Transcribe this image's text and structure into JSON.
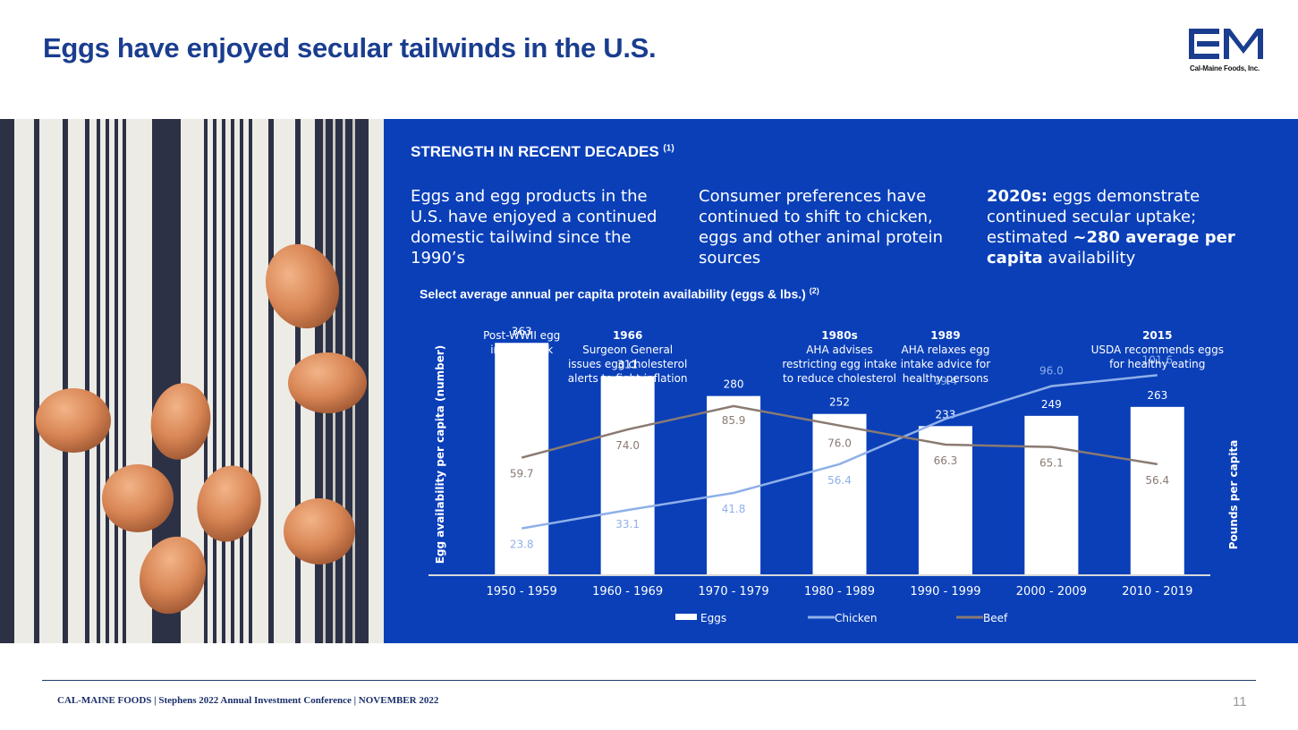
{
  "title": "Eggs have enjoyed secular tailwinds in the U.S.",
  "logo": {
    "mark": "CM",
    "company": "Cal-Maine Foods, Inc."
  },
  "panel": {
    "heading": "STRENGTH IN RECENT DECADES",
    "heading_note": "(1)",
    "col1": "Eggs and egg products in the U.S. have enjoyed a continued domestic tailwind since the 1990’s",
    "col2": "Consumer preferences have continued to shift to chicken, eggs and other animal protein sources",
    "col3_bold1": "2020s:",
    "col3_text1": " eggs demonstrate continued secular uptake; estimated ",
    "col3_bold2": "~280 average per capita",
    "col3_text2": " availability",
    "chart_title": "Select average annual per capita protein availability (eggs & lbs.)",
    "chart_title_note": "(2)"
  },
  "chart_data": {
    "type": "bar",
    "categories": [
      "1950 - 1959",
      "1960 - 1969",
      "1970 - 1979",
      "1980 - 1989",
      "1990 - 1999",
      "2000 - 2009",
      "2010 - 2019"
    ],
    "ylabel": "Egg availability per capita (number)",
    "y2label": "Pounds per capita",
    "ylim": [
      0,
      400
    ],
    "y2lim": [
      0,
      130
    ],
    "series": [
      {
        "name": "Eggs",
        "type": "bar",
        "values": [
          363,
          311,
          280,
          252,
          233,
          249,
          263
        ],
        "color": "#ffffff"
      },
      {
        "name": "Chicken",
        "type": "line",
        "values": [
          23.8,
          33.1,
          41.8,
          56.4,
          79.4,
          96.0,
          101.6
        ],
        "color": "#8fb0e8"
      },
      {
        "name": "Beef",
        "type": "line",
        "values": [
          59.7,
          74.0,
          85.9,
          76.0,
          66.3,
          65.1,
          56.4
        ],
        "color": "#8a7a72"
      }
    ],
    "data_labels": {
      "Eggs": [
        "363",
        "311",
        "280",
        "252",
        "233",
        "249",
        "263"
      ],
      "Chicken": [
        "23.8",
        "33.1",
        "41.8",
        "56.4",
        "79.4",
        "96.0",
        "101.6"
      ],
      "Beef": [
        "59.7",
        "74.0",
        "85.9",
        "76.0",
        "66.3",
        "65.1",
        "56.4"
      ]
    },
    "annotations": [
      {
        "category": "1950 - 1959",
        "lines": [
          "Post-WWII egg",
          "intake peak"
        ],
        "bold_first": false
      },
      {
        "category": "1960 - 1969",
        "lines": [
          "1966",
          "Surgeon General",
          "issues egg cholesterol",
          "alerts to fight  inflation"
        ],
        "bold_first": true
      },
      {
        "category": "1980 - 1989",
        "lines": [
          "1980s",
          "AHA advises",
          "restricting  egg intake",
          "to reduce cholesterol"
        ],
        "bold_first": true
      },
      {
        "category": "1990 - 1999",
        "lines": [
          "1989",
          "AHA relaxes egg",
          "intake advice for",
          "healthy persons"
        ],
        "bold_first": true
      },
      {
        "category": "2010 - 2019",
        "lines": [
          "2015",
          "USDA recommends eggs",
          "for healthy eating"
        ],
        "bold_first": true
      }
    ],
    "legend": {
      "position": "bottom"
    }
  },
  "footer": "CAL-MAINE FOODS | Stephens 2022 Annual Investment Conference | NOVEMBER 2022",
  "page_number": "11",
  "colors": {
    "brand_blue": "#1a3d8f",
    "panel_blue": "#0a3fb8"
  },
  "photo": {
    "description_icon": "eggs-on-striped-cloth-image"
  }
}
